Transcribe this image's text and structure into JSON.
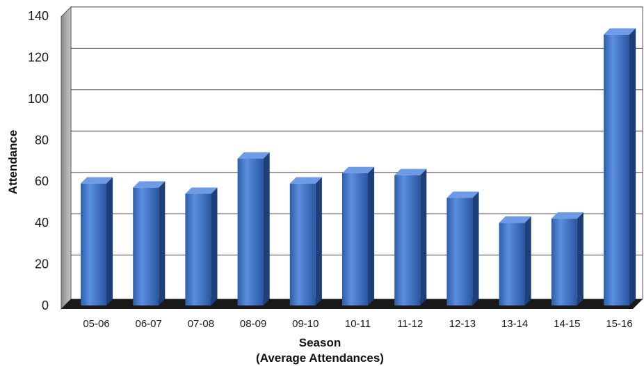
{
  "chart_data": {
    "type": "bar",
    "title": "",
    "xlabel": "Season",
    "xlabel_sub": "(Average Attendances)",
    "ylabel": "Attendance",
    "ylim": [
      0,
      140
    ],
    "yticks": [
      0,
      20,
      40,
      60,
      80,
      100,
      120,
      140
    ],
    "grid": true,
    "style": "3d",
    "bar_color": "#3f6fc0",
    "categories": [
      "05-06",
      "06-07",
      "07-08",
      "08-09",
      "09-10",
      "10-11",
      "11-12",
      "12-13",
      "13-14",
      "14-15",
      "15-16"
    ],
    "values": [
      59,
      57,
      54,
      71,
      59,
      64,
      63,
      52,
      40,
      42,
      131
    ]
  }
}
